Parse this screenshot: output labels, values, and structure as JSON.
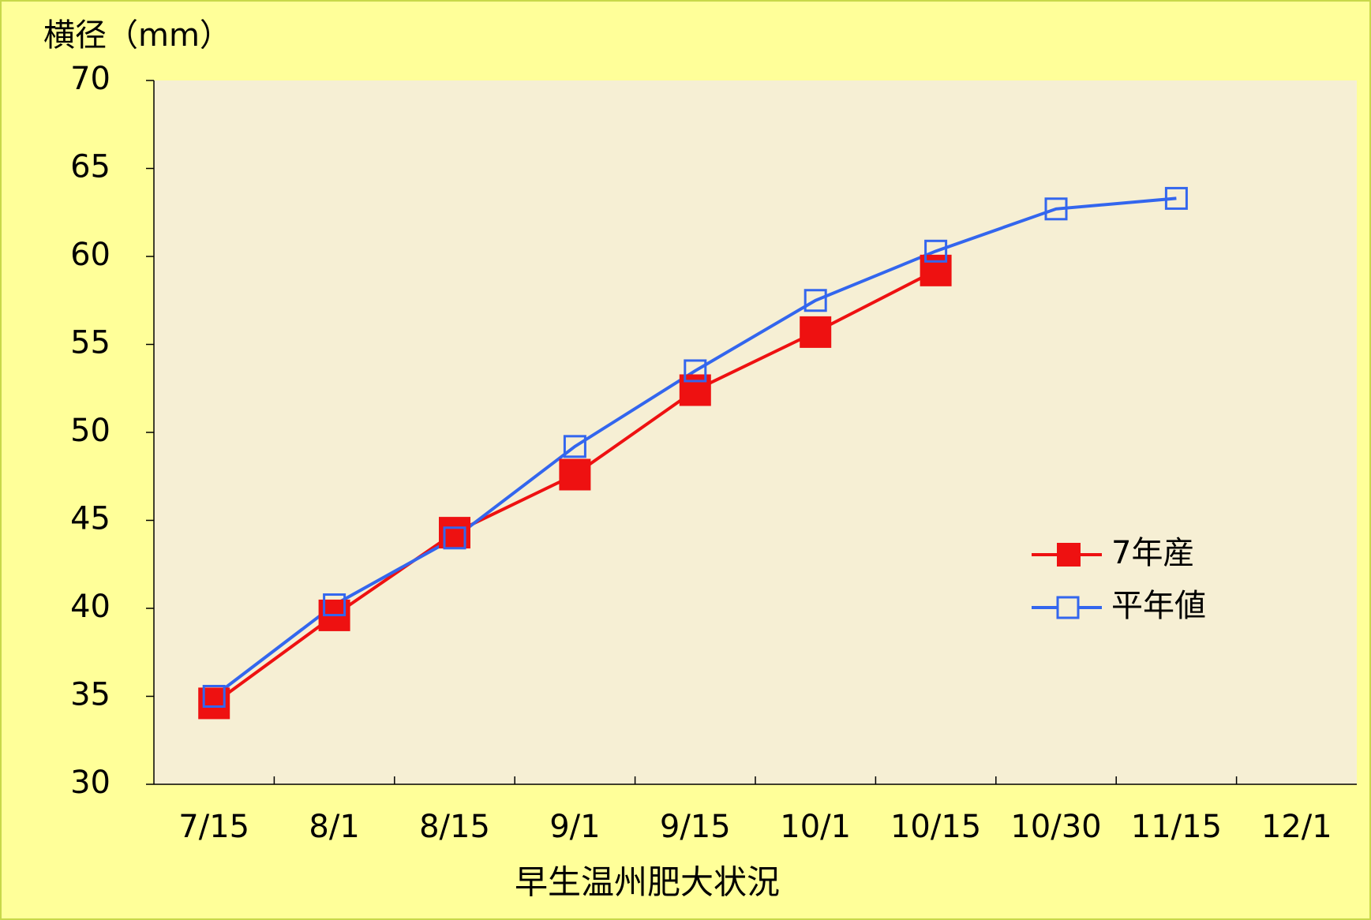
{
  "chart_data": {
    "type": "line",
    "title": "早生温州肥大状況",
    "y_label": "横径（mm）",
    "categories": [
      "7/15",
      "8/1",
      "8/15",
      "9/1",
      "9/15",
      "10/1",
      "10/15",
      "10/30",
      "11/15",
      "12/1"
    ],
    "series": [
      {
        "name": "7年産",
        "color": "#ee1111",
        "marker": "filled-square",
        "values": [
          34.6,
          39.6,
          44.3,
          47.6,
          52.4,
          55.7,
          59.2,
          null,
          null,
          null
        ]
      },
      {
        "name": "平年値",
        "color": "#3366ee",
        "marker": "hollow-square",
        "values": [
          35.0,
          40.2,
          44.0,
          49.2,
          53.5,
          57.5,
          60.3,
          62.7,
          63.3,
          null
        ]
      }
    ],
    "ylim": [
      30,
      70
    ],
    "yticks": [
      30,
      35,
      40,
      45,
      50,
      55,
      60,
      65,
      70
    ],
    "grid": false,
    "legend": "right"
  }
}
